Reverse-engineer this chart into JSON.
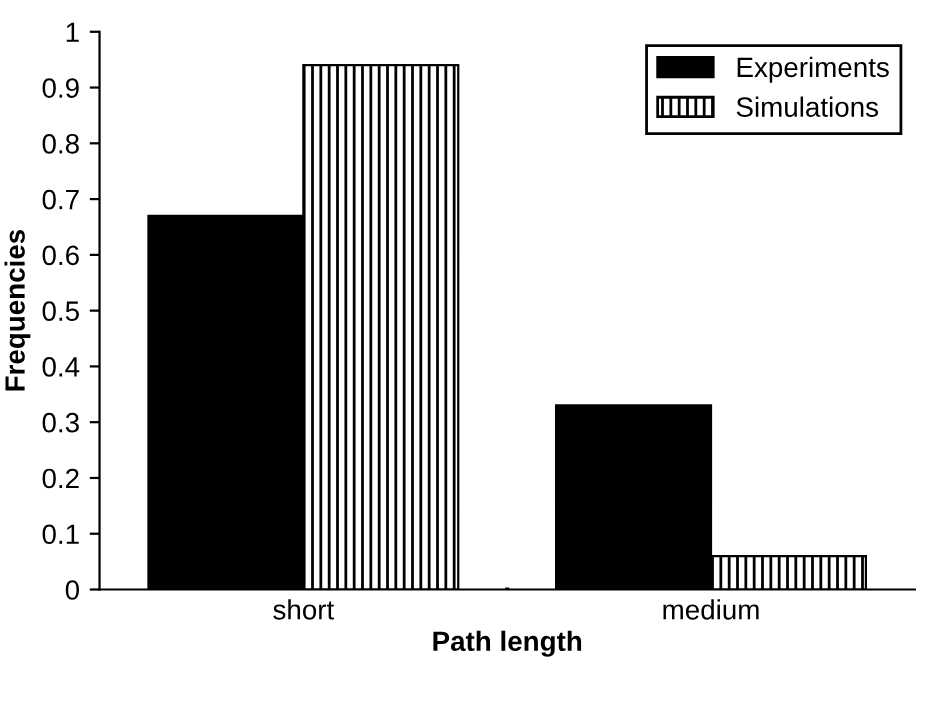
{
  "chart_data": {
    "type": "bar",
    "xlabel": "Path length",
    "ylabel": "Frequencies",
    "categories": [
      "short",
      "medium"
    ],
    "series": [
      {
        "name": "Experiments",
        "color": "#000000",
        "values": [
          0.67,
          0.33
        ]
      },
      {
        "name": "Simulations",
        "color": "#000000",
        "values": [
          0.94,
          0.06
        ]
      }
    ],
    "ylim": [
      0,
      1
    ],
    "yticks": [
      0,
      0.1,
      0.2,
      0.3,
      0.4,
      0.5,
      0.6,
      0.7,
      0.8,
      0.9,
      1
    ],
    "grid": false,
    "legend": "top right"
  }
}
